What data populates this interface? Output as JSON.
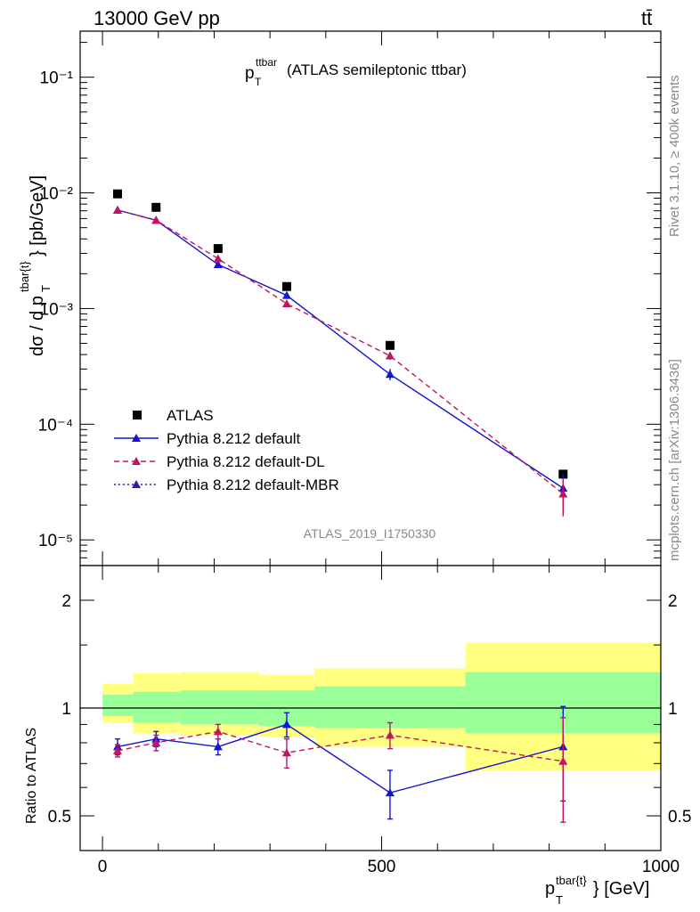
{
  "header": {
    "left": "13000 GeV pp",
    "right": "tt̄"
  },
  "side_labels": {
    "rivet": "Rivet 3.1.10, ≥ 400k events",
    "mcplots": "mcplots.cern.ch [arXiv:1306.3436]"
  },
  "chart_data": [
    {
      "type": "line",
      "panel": "main",
      "title_main": "p",
      "title_sub": "T",
      "title_sup": "ttbar",
      "title_rest": " (ATLAS semileptonic ttbar)",
      "ylabel": "dσ / d p_T^{tbar{t}} [pb/GeV]",
      "yscale": "log",
      "xlim": [
        -40,
        1000
      ],
      "ylim": [
        6e-06,
        0.25
      ],
      "y_tick_labels": [
        "10⁻⁵",
        "10⁻⁴",
        "10⁻³",
        "10⁻²",
        "10⁻¹"
      ],
      "watermark": "ATLAS_2019_I1750330",
      "legend_position": "middle-left",
      "series": [
        {
          "name": "ATLAS",
          "style": "black-square",
          "x": [
            27,
            96,
            207,
            330,
            515,
            825
          ],
          "y": [
            0.0098,
            0.0075,
            0.0033,
            0.00155,
            0.00048,
            3.7e-05
          ]
        },
        {
          "name": "Pythia 8.212 default",
          "style": "blue-solid",
          "color": "#1414d2",
          "x": [
            27,
            96,
            207,
            330,
            515,
            825
          ],
          "y": [
            0.0071,
            0.0058,
            0.0024,
            0.0013,
            0.00027,
            2.8e-05
          ],
          "err_low": [
            0.0003,
            0.0002,
            0.0001,
            7e-05,
            3e-05,
            9e-06
          ],
          "err_high": [
            0.0003,
            0.0002,
            0.0001,
            7e-05,
            3e-05,
            9e-06
          ]
        },
        {
          "name": "Pythia 8.212 default-DL",
          "style": "magenta-dashed",
          "color": "#c0155f",
          "x": [
            27,
            96,
            207,
            330,
            515,
            825
          ],
          "y": [
            0.0071,
            0.0058,
            0.0027,
            0.0011,
            0.00039,
            2.5e-05
          ],
          "err_low": [
            0.0003,
            0.0002,
            0.0001,
            6e-05,
            3e-05,
            9e-06
          ],
          "err_high": [
            0.0003,
            0.0002,
            0.0001,
            6e-05,
            3e-05,
            9e-06
          ]
        },
        {
          "name": "Pythia 8.212 default-MBR",
          "style": "purple-dotted",
          "color": "#3a16b4",
          "x": [],
          "y": []
        }
      ]
    },
    {
      "type": "line",
      "panel": "ratio",
      "ylabel": "Ratio to ATLAS",
      "xlabel": "p_T^{tbar{t}} [GeV]",
      "xlim": [
        -40,
        1000
      ],
      "ylim": [
        0.4,
        2.5
      ],
      "x_ticks": [
        0,
        500,
        1000
      ],
      "y_ticks": [
        0.5,
        1,
        2
      ],
      "bins": [
        0,
        55,
        140,
        280,
        380,
        650,
        1000
      ],
      "band_inner": [
        [
          0.95,
          1.09
        ],
        [
          0.91,
          1.11
        ],
        [
          0.9,
          1.12
        ],
        [
          0.89,
          1.12
        ],
        [
          0.88,
          1.15
        ],
        [
          0.85,
          1.26
        ]
      ],
      "band_outer": [
        [
          0.91,
          1.17
        ],
        [
          0.85,
          1.25
        ],
        [
          0.84,
          1.26
        ],
        [
          0.83,
          1.24
        ],
        [
          0.78,
          1.29
        ],
        [
          0.67,
          1.52
        ]
      ],
      "series": [
        {
          "name": "Pythia 8.212 default",
          "color": "#1414d2",
          "x": [
            27,
            96,
            207,
            330,
            515,
            825
          ],
          "y": [
            0.78,
            0.82,
            0.78,
            0.9,
            0.58,
            0.78
          ],
          "err": [
            0.04,
            0.04,
            0.04,
            0.07,
            0.09,
            0.23
          ]
        },
        {
          "name": "Pythia 8.212 default-DL",
          "color": "#c0155f",
          "x": [
            27,
            96,
            207,
            330,
            515,
            825
          ],
          "y": [
            0.76,
            0.8,
            0.86,
            0.75,
            0.84,
            0.71
          ],
          "err": [
            0.03,
            0.04,
            0.04,
            0.07,
            0.07,
            0.23
          ]
        }
      ]
    }
  ]
}
